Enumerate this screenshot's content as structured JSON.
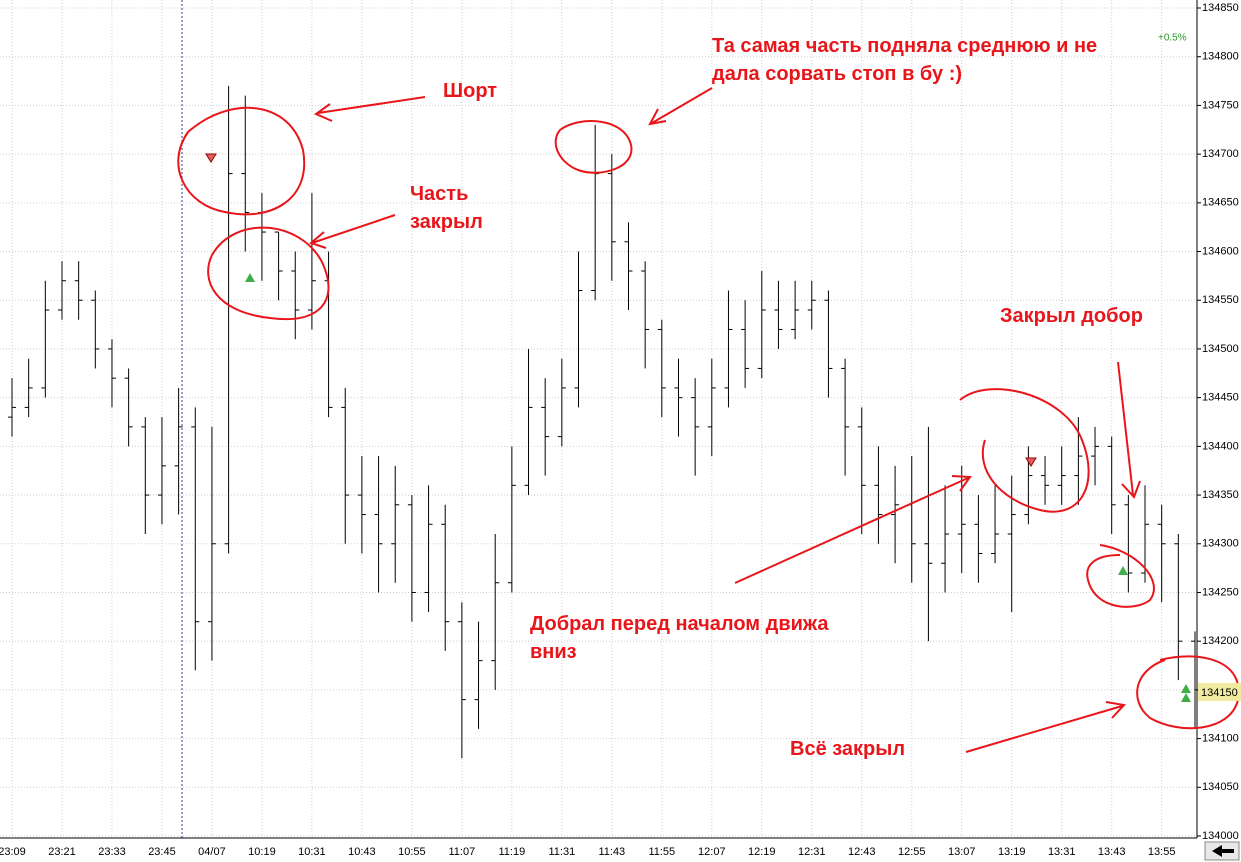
{
  "chart_data": {
    "type": "ohlc",
    "categories": [
      "23:09",
      null,
      null,
      "23:21",
      null,
      null,
      "23:33",
      null,
      null,
      "23:45",
      null,
      null,
      "04/07",
      null,
      null,
      "10:19",
      null,
      null,
      "10:31",
      null,
      null,
      "10:43",
      null,
      null,
      "10:55",
      null,
      null,
      "11:07",
      null,
      null,
      "11:19",
      null,
      null,
      "11:31",
      null,
      null,
      "11:43",
      null,
      null,
      "11:55",
      null,
      null,
      "12:07",
      null,
      null,
      "12:19",
      null,
      null,
      "12:31",
      null,
      null,
      "12:43",
      null,
      null,
      "12:55",
      null,
      null,
      "13:07",
      null,
      null,
      "13:19",
      null,
      null,
      "13:31",
      null,
      null,
      "13:43",
      null,
      null,
      "13:55",
      null,
      null
    ],
    "open": [
      134430,
      134440,
      134460,
      134540,
      134570,
      134550,
      134500,
      134470,
      134420,
      134350,
      134380,
      134420,
      134220,
      134300,
      134680,
      134640,
      134620,
      134580,
      134540,
      134570,
      134440,
      134350,
      134330,
      134300,
      134340,
      134250,
      134320,
      134220,
      134140,
      134180,
      134260,
      134360,
      134440,
      134410,
      134460,
      134560,
      134680,
      134610,
      134580,
      134520,
      134460,
      134450,
      134420,
      134460,
      134520,
      134480,
      134540,
      134520,
      134540,
      134550,
      134480,
      134420,
      134360,
      134330,
      134340,
      134300,
      134280,
      134310,
      134320,
      134290,
      134310,
      134330,
      134370,
      134360,
      134370,
      134390,
      134400,
      134340,
      134270,
      134320,
      134300,
      134200
    ],
    "high": [
      134470,
      134490,
      134570,
      134590,
      134590,
      134560,
      134510,
      134480,
      134430,
      134430,
      134460,
      134440,
      134420,
      134770,
      134760,
      134660,
      134620,
      134600,
      134660,
      134600,
      134460,
      134390,
      134390,
      134380,
      134350,
      134360,
      134340,
      134240,
      134220,
      134310,
      134400,
      134500,
      134470,
      134490,
      134600,
      134730,
      134700,
      134630,
      134590,
      134530,
      134490,
      134470,
      134490,
      134560,
      134550,
      134580,
      134570,
      134570,
      134570,
      134560,
      134490,
      134440,
      134400,
      134380,
      134390,
      134420,
      134360,
      134380,
      134350,
      134360,
      134370,
      134400,
      134390,
      134400,
      134430,
      134420,
      134410,
      134350,
      134360,
      134340,
      134310,
      134210
    ],
    "low": [
      134410,
      134430,
      134450,
      134530,
      134530,
      134480,
      134440,
      134400,
      134310,
      134320,
      134330,
      134170,
      134180,
      134290,
      134600,
      134570,
      134550,
      134510,
      134520,
      134430,
      134300,
      134290,
      134250,
      134260,
      134220,
      134230,
      134190,
      134080,
      134110,
      134150,
      134250,
      134350,
      134370,
      134400,
      134440,
      134550,
      134570,
      134540,
      134480,
      134430,
      134410,
      134370,
      134390,
      134440,
      134460,
      134470,
      134500,
      134510,
      134520,
      134450,
      134370,
      134310,
      134300,
      134280,
      134260,
      134200,
      134250,
      134270,
      134260,
      134280,
      134230,
      134320,
      134340,
      134340,
      134340,
      134360,
      134310,
      134250,
      134260,
      134240,
      134160,
      134110
    ],
    "close": [
      134440,
      134460,
      134540,
      134570,
      134550,
      134500,
      134470,
      134420,
      134350,
      134380,
      134420,
      134220,
      134300,
      134680,
      134640,
      134620,
      134580,
      134540,
      134570,
      134440,
      134350,
      134330,
      134300,
      134340,
      134250,
      134320,
      134220,
      134140,
      134180,
      134260,
      134360,
      134440,
      134410,
      134460,
      134560,
      134680,
      134610,
      134580,
      134520,
      134460,
      134450,
      134420,
      134460,
      134520,
      134480,
      134540,
      134520,
      134540,
      134550,
      134480,
      134420,
      134360,
      134330,
      134340,
      134300,
      134280,
      134310,
      134320,
      134290,
      134310,
      134330,
      134370,
      134360,
      134370,
      134390,
      134400,
      134340,
      134270,
      134320,
      134300,
      134200,
      134150
    ],
    "color": "#000000",
    "ylim": [
      134000,
      134850
    ],
    "yticks": [
      134000,
      134050,
      134100,
      134150,
      134200,
      134250,
      134300,
      134350,
      134400,
      134450,
      134500,
      134550,
      134600,
      134650,
      134700,
      134750,
      134800,
      134850
    ],
    "grid": true,
    "last_price": 134150,
    "change_label": "+0.5%",
    "annotations": [
      [
        "Шорт"
      ],
      [
        "Часть",
        "закрыл"
      ],
      [
        "Та самая часть подняла среднюю и не",
        "дала сорвать стоп в бу :)"
      ],
      [
        "Закрыл добор"
      ],
      [
        "Добрал перед началом движа",
        "вниз"
      ],
      [
        "Всё закрыл"
      ]
    ]
  }
}
